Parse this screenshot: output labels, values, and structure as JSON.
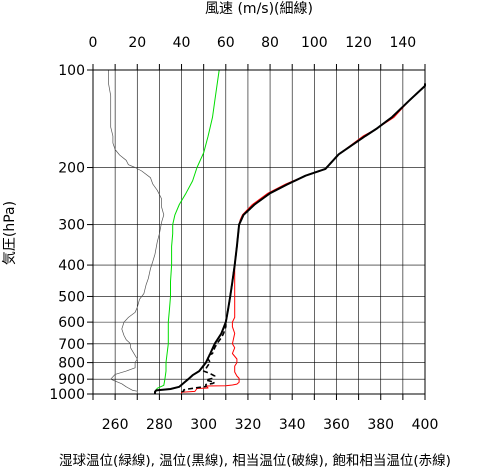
{
  "chart_data": {
    "type": "line",
    "title_top": "風速 (m/s)(細線)",
    "ylabel": "気圧(hPa)",
    "xlabel": "湿球温位(緑線), 温位(黒線), 相当温位(破線), 飽和相当温位(赤線)",
    "y_scale": "log",
    "ylim": [
      1000,
      100
    ],
    "x_temp_lim": [
      250,
      400
    ],
    "x_wind_lim": [
      0,
      150
    ],
    "x_ticks": [
      "260",
      "280",
      "300",
      "320",
      "340",
      "360",
      "380",
      "400"
    ],
    "x_top_ticks": [
      "0",
      "20",
      "40",
      "60",
      "80",
      "100",
      "120",
      "140"
    ],
    "y_ticks": [
      "100",
      "200",
      "300",
      "400",
      "500",
      "600",
      "700",
      "800",
      "900",
      "1000"
    ],
    "colors": {
      "wetbulb": "#00dd00",
      "theta": "#000000",
      "thetae": "#000000",
      "thetaes": "#ff0000",
      "wind": "#555555",
      "grid": "#000000"
    },
    "series": [
      {
        "name": "湿球温位",
        "style": "green",
        "points": [
          [
            278.5,
            975
          ],
          [
            279,
            960
          ],
          [
            282,
            940
          ],
          [
            282.5,
            900
          ],
          [
            283,
            850
          ],
          [
            283,
            800
          ],
          [
            283.5,
            750
          ],
          [
            284,
            700
          ],
          [
            284,
            650
          ],
          [
            284,
            600
          ],
          [
            284.5,
            550
          ],
          [
            285,
            500
          ],
          [
            285,
            450
          ],
          [
            285.5,
            400
          ],
          [
            285.5,
            350
          ],
          [
            286,
            320
          ],
          [
            286,
            300
          ],
          [
            287,
            280
          ],
          [
            289,
            260
          ],
          [
            292,
            240
          ],
          [
            295,
            220
          ],
          [
            297,
            200
          ],
          [
            300,
            180
          ],
          [
            302,
            160
          ],
          [
            304,
            140
          ],
          [
            305,
            125
          ],
          [
            306,
            112
          ],
          [
            307,
            100
          ]
        ]
      },
      {
        "name": "温位",
        "style": "black",
        "points": [
          [
            278,
            1000
          ],
          [
            278,
            985
          ],
          [
            278.5,
            975
          ],
          [
            285,
            965
          ],
          [
            289,
            950
          ],
          [
            291,
            925
          ],
          [
            293,
            900
          ],
          [
            295,
            875
          ],
          [
            298,
            850
          ],
          [
            301,
            800
          ],
          [
            303,
            750
          ],
          [
            305,
            700
          ],
          [
            308,
            650
          ],
          [
            310,
            600
          ],
          [
            311,
            550
          ],
          [
            312,
            500
          ],
          [
            313,
            450
          ],
          [
            314,
            400
          ],
          [
            315,
            350
          ],
          [
            316,
            300
          ],
          [
            317,
            290
          ],
          [
            318,
            280
          ],
          [
            323,
            260
          ],
          [
            330,
            240
          ],
          [
            338,
            225
          ],
          [
            346,
            212
          ],
          [
            355,
            202
          ],
          [
            361,
            182
          ],
          [
            373,
            160
          ],
          [
            378,
            152
          ],
          [
            385,
            140
          ],
          [
            393,
            124
          ],
          [
            400,
            112
          ],
          [
            400,
            110
          ]
        ]
      },
      {
        "name": "相当温位",
        "style": "dash",
        "points": [
          [
            290,
            985
          ],
          [
            291,
            980
          ],
          [
            291,
            972
          ],
          [
            292,
            967
          ],
          [
            297,
            956
          ],
          [
            301,
            948
          ],
          [
            301,
            935
          ],
          [
            304,
            928
          ],
          [
            305,
            920
          ],
          [
            301,
            905
          ],
          [
            304,
            895
          ],
          [
            305,
            880
          ],
          [
            303,
            865
          ],
          [
            300,
            850
          ],
          [
            301,
            835
          ],
          [
            302,
            815
          ],
          [
            303,
            800
          ],
          [
            302,
            780
          ],
          [
            302,
            760
          ],
          [
            304,
            750
          ],
          [
            305,
            720
          ],
          [
            306,
            700
          ],
          [
            308,
            670
          ],
          [
            309,
            650
          ],
          [
            310,
            620
          ],
          [
            310,
            600
          ],
          [
            311,
            550
          ],
          [
            312,
            500
          ],
          [
            313,
            450
          ],
          [
            314,
            400
          ],
          [
            315,
            350
          ],
          [
            316,
            300
          ],
          [
            317,
            290
          ],
          [
            318,
            280
          ],
          [
            323,
            260
          ],
          [
            330,
            240
          ],
          [
            338,
            225
          ],
          [
            346,
            212
          ],
          [
            355,
            202
          ],
          [
            361,
            182
          ],
          [
            373,
            160
          ],
          [
            378,
            152
          ],
          [
            385,
            140
          ],
          [
            393,
            124
          ],
          [
            400,
            112
          ],
          [
            400,
            110
          ]
        ]
      },
      {
        "name": "飽和相当温位",
        "style": "red",
        "points": [
          [
            290,
            1000
          ],
          [
            290,
            988
          ],
          [
            296,
            982
          ],
          [
            297,
            962
          ],
          [
            302,
            958
          ],
          [
            301,
            945
          ],
          [
            310,
            943
          ],
          [
            313,
            938
          ],
          [
            315,
            932
          ],
          [
            316,
            920
          ],
          [
            316,
            905
          ],
          [
            316,
            895
          ],
          [
            315,
            880
          ],
          [
            314,
            855
          ],
          [
            314,
            840
          ],
          [
            314,
            820
          ],
          [
            315,
            800
          ],
          [
            315,
            780
          ],
          [
            313,
            750
          ],
          [
            314,
            720
          ],
          [
            313,
            700
          ],
          [
            314,
            650
          ],
          [
            313,
            620
          ],
          [
            313,
            600
          ],
          [
            314,
            580
          ],
          [
            314,
            500
          ],
          [
            314,
            450
          ],
          [
            314,
            400
          ],
          [
            315,
            350
          ],
          [
            316,
            300
          ],
          [
            316.5,
            290
          ],
          [
            317.5,
            280
          ],
          [
            322,
            260
          ],
          [
            329,
            240
          ],
          [
            337,
            225
          ],
          [
            346,
            212
          ],
          [
            355,
            202
          ],
          [
            361,
            182
          ],
          [
            372,
            160
          ],
          [
            378,
            152
          ],
          [
            386,
            140
          ],
          [
            393,
            124
          ],
          [
            400,
            112
          ],
          [
            400,
            110
          ]
        ]
      },
      {
        "name": "風速",
        "style": "wind",
        "points": [
          [
            20,
            1000
          ],
          [
            20,
            980
          ],
          [
            18,
            975
          ],
          [
            15,
            950
          ],
          [
            13,
            930
          ],
          [
            8,
            900
          ],
          [
            10,
            870
          ],
          [
            15,
            850
          ],
          [
            19,
            830
          ],
          [
            19,
            800
          ],
          [
            20,
            780
          ],
          [
            19,
            760
          ],
          [
            18,
            740
          ],
          [
            17,
            720
          ],
          [
            17,
            700
          ],
          [
            15,
            680
          ],
          [
            14,
            660
          ],
          [
            13,
            630
          ],
          [
            14,
            600
          ],
          [
            16,
            580
          ],
          [
            19,
            560
          ],
          [
            20,
            540
          ],
          [
            21,
            510
          ],
          [
            23,
            490
          ],
          [
            24,
            460
          ],
          [
            25,
            440
          ],
          [
            26,
            410
          ],
          [
            27,
            390
          ],
          [
            28,
            370
          ],
          [
            29,
            340
          ],
          [
            30,
            320
          ],
          [
            31,
            295
          ],
          [
            32,
            280
          ],
          [
            31,
            265
          ],
          [
            31,
            250
          ],
          [
            29,
            235
          ],
          [
            27,
            225
          ],
          [
            26,
            215
          ],
          [
            22,
            205
          ],
          [
            19,
            200
          ],
          [
            16,
            196
          ],
          [
            15,
            190
          ],
          [
            12,
            183
          ],
          [
            10,
            176
          ],
          [
            9,
            168
          ],
          [
            9,
            160
          ],
          [
            8,
            150
          ],
          [
            8,
            140
          ],
          [
            8,
            130
          ],
          [
            8,
            120
          ],
          [
            7,
            110
          ],
          [
            7,
            100
          ]
        ]
      }
    ]
  }
}
